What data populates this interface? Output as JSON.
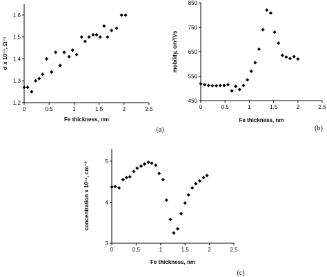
{
  "chart_data": [
    {
      "type": "scatter",
      "panel_label": "(a)",
      "xlabel": "Fe thickness, nm",
      "ylabel": "σ x 10⁻³, Ω⁻¹",
      "xlim": [
        0,
        2.5
      ],
      "ylim": [
        1.2,
        1.65
      ],
      "xticks": [
        "0",
        "0.5",
        "1",
        "1.5",
        "2",
        "2.5"
      ],
      "yticks": [
        "1.2",
        "1.3",
        "1.4",
        "1.5",
        "1.6"
      ],
      "grid": false,
      "points": [
        [
          0.0,
          1.27
        ],
        [
          0.07,
          1.27
        ],
        [
          0.15,
          1.25
        ],
        [
          0.23,
          1.3
        ],
        [
          0.3,
          1.31
        ],
        [
          0.37,
          1.33
        ],
        [
          0.45,
          1.4
        ],
        [
          0.55,
          1.34
        ],
        [
          0.63,
          1.43
        ],
        [
          0.72,
          1.37
        ],
        [
          0.8,
          1.43
        ],
        [
          0.9,
          1.41
        ],
        [
          0.97,
          1.44
        ],
        [
          1.05,
          1.42
        ],
        [
          1.15,
          1.5
        ],
        [
          1.22,
          1.48
        ],
        [
          1.3,
          1.5
        ],
        [
          1.38,
          1.51
        ],
        [
          1.45,
          1.51
        ],
        [
          1.52,
          1.5
        ],
        [
          1.6,
          1.55
        ],
        [
          1.67,
          1.5
        ],
        [
          1.75,
          1.53
        ],
        [
          1.85,
          1.54
        ],
        [
          1.95,
          1.6
        ],
        [
          2.03,
          1.6
        ]
      ]
    },
    {
      "type": "scatter",
      "panel_label": "(b)",
      "xlabel": "Fe thickness, nm",
      "ylabel": "mobility, cm²/Vs",
      "xlim": [
        0,
        2.5
      ],
      "ylim": [
        450,
        850
      ],
      "xticks": [
        "0",
        "0.5",
        "1",
        "1.5",
        "2",
        "2.5"
      ],
      "yticks": [
        "450",
        "550",
        "650",
        "750",
        "850"
      ],
      "grid": false,
      "points": [
        [
          0.0,
          519
        ],
        [
          0.08,
          515
        ],
        [
          0.16,
          512
        ],
        [
          0.24,
          511
        ],
        [
          0.32,
          511
        ],
        [
          0.4,
          512
        ],
        [
          0.48,
          512
        ],
        [
          0.56,
          515
        ],
        [
          0.64,
          490
        ],
        [
          0.72,
          508
        ],
        [
          0.8,
          495
        ],
        [
          0.88,
          512
        ],
        [
          0.96,
          535
        ],
        [
          1.04,
          570
        ],
        [
          1.12,
          605
        ],
        [
          1.2,
          660
        ],
        [
          1.28,
          740
        ],
        [
          1.36,
          820
        ],
        [
          1.44,
          808
        ],
        [
          1.52,
          730
        ],
        [
          1.6,
          685
        ],
        [
          1.68,
          635
        ],
        [
          1.76,
          628
        ],
        [
          1.84,
          622
        ],
        [
          1.92,
          630
        ],
        [
          2.0,
          620
        ]
      ]
    },
    {
      "type": "scatter",
      "panel_label": "(c)",
      "xlabel": "Fe thickness, nm",
      "ylabel": "concentration x 10¹⁴, cm⁻³",
      "xlim": [
        0,
        2.5
      ],
      "ylim": [
        3,
        5.3
      ],
      "xticks": [
        "0",
        "0.5",
        "1",
        "1.5",
        "2",
        "2.5"
      ],
      "yticks": [
        "3",
        "4",
        "5"
      ],
      "grid": false,
      "points": [
        [
          0.0,
          4.37
        ],
        [
          0.07,
          4.38
        ],
        [
          0.15,
          4.35
        ],
        [
          0.23,
          4.55
        ],
        [
          0.3,
          4.6
        ],
        [
          0.37,
          4.62
        ],
        [
          0.45,
          4.75
        ],
        [
          0.52,
          4.83
        ],
        [
          0.6,
          4.88
        ],
        [
          0.67,
          4.93
        ],
        [
          0.75,
          4.97
        ],
        [
          0.82,
          4.95
        ],
        [
          0.9,
          4.9
        ],
        [
          0.97,
          4.7
        ],
        [
          1.05,
          4.55
        ],
        [
          1.12,
          4.05
        ],
        [
          1.2,
          3.58
        ],
        [
          1.27,
          3.25
        ],
        [
          1.35,
          3.35
        ],
        [
          1.42,
          3.72
        ],
        [
          1.5,
          3.98
        ],
        [
          1.57,
          4.18
        ],
        [
          1.65,
          4.35
        ],
        [
          1.72,
          4.45
        ],
        [
          1.8,
          4.52
        ],
        [
          1.88,
          4.6
        ],
        [
          1.95,
          4.65
        ]
      ]
    }
  ]
}
